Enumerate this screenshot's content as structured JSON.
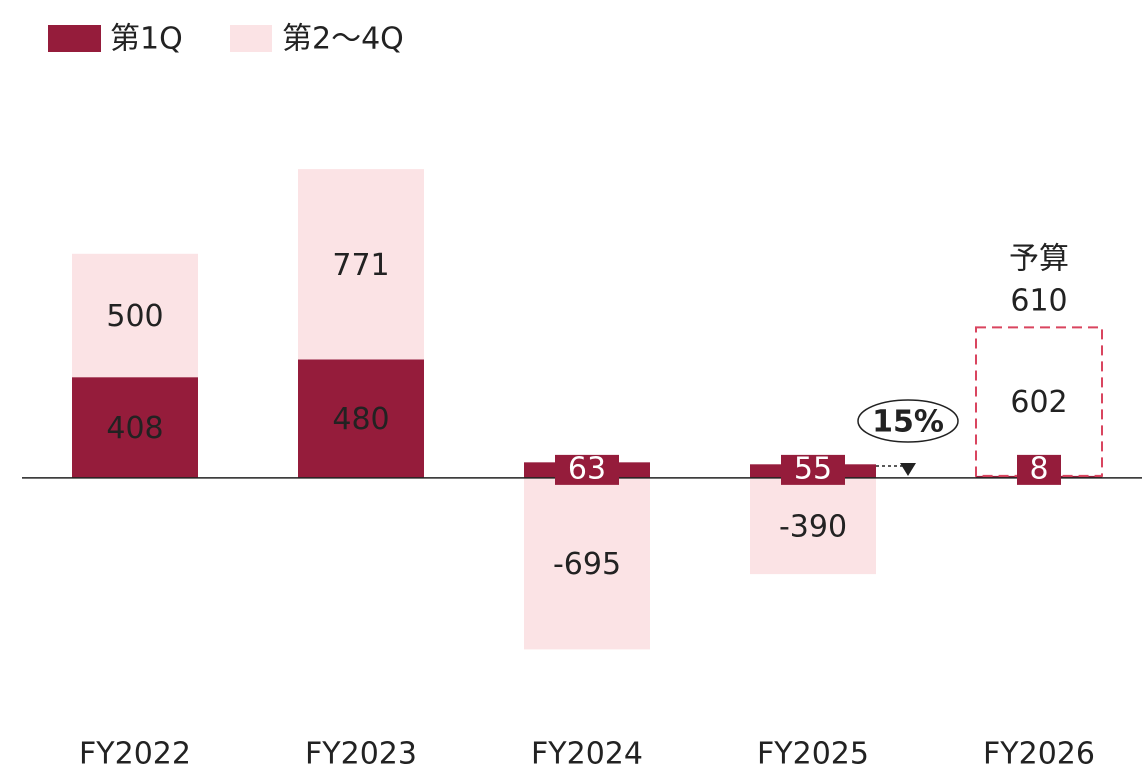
{
  "chart_data": {
    "type": "stacked_bar",
    "categories": [
      "FY2022",
      "FY2023",
      "FY2024",
      "FY2025",
      "FY2026"
    ],
    "series": [
      {
        "name": "第1Q",
        "color": "#951c3b",
        "values": [
          408,
          480,
          63,
          55,
          8
        ]
      },
      {
        "name": "第2～4Q",
        "color": "#fbe3e5",
        "values": [
          500,
          771,
          -695,
          -390,
          602
        ]
      }
    ],
    "ylim": [
      -900,
      1600
    ],
    "budget": {
      "label": "予算",
      "value": 610,
      "category": "FY2026",
      "color": "#d9455f"
    },
    "growth_label": "15%",
    "legend": "top-left"
  }
}
